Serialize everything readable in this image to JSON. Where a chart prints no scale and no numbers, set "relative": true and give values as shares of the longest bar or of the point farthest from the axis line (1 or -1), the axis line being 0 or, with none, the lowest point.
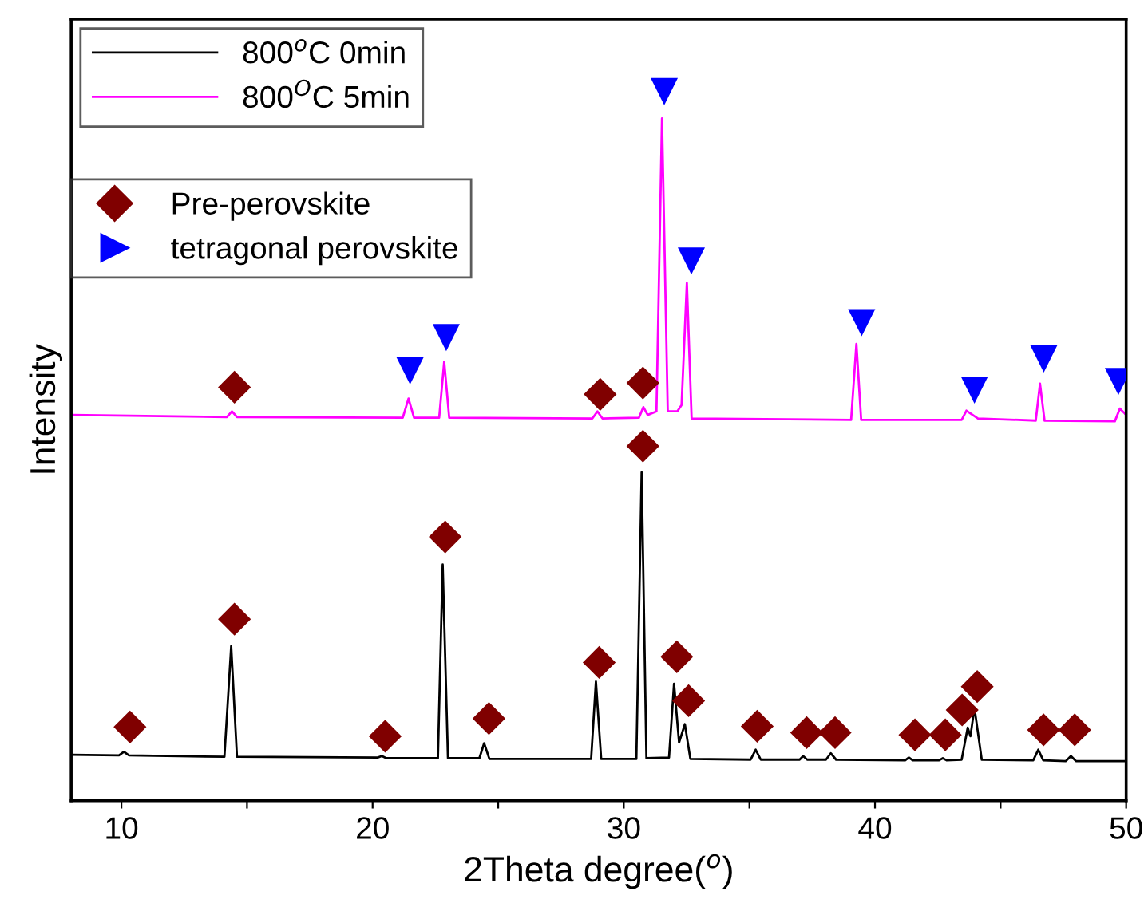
{
  "chart_data": {
    "type": "line",
    "relative": true,
    "xlabel": "2Theta degree($^{o}$)",
    "ylabel": "Intensity",
    "xlim": [
      8,
      50
    ],
    "xticks": [
      10,
      {
        "value": 15,
        "label": null
      },
      20,
      {
        "value": 25,
        "label": null
      },
      30,
      {
        "value": 35,
        "label": null
      },
      40,
      {
        "value": 45,
        "label": null
      },
      50
    ],
    "tick_labels": "x",
    "grid": false,
    "legend": "top left",
    "series": [
      {
        "name": "800$^{o}$C 0min",
        "color": "#000000",
        "x": [
          8.0,
          9.9,
          10.1,
          10.3,
          14.1,
          14.37,
          14.6,
          20.2,
          20.37,
          20.55,
          22.6,
          22.79,
          23.0,
          24.25,
          24.44,
          24.65,
          28.7,
          28.89,
          29.1,
          30.5,
          30.71,
          30.9,
          31.8,
          32.0,
          32.2,
          32.43,
          32.65,
          35.05,
          35.25,
          35.45,
          37.0,
          37.14,
          37.3,
          38.05,
          38.24,
          38.45,
          41.2,
          41.35,
          41.5,
          42.55,
          42.7,
          42.85,
          43.45,
          43.69,
          43.8,
          43.96,
          44.25,
          46.3,
          46.5,
          46.7,
          47.6,
          47.8,
          48.0,
          50.0
        ],
        "values": [
          0.065,
          0.064,
          0.069,
          0.064,
          0.062,
          0.218,
          0.062,
          0.061,
          0.063,
          0.06,
          0.06,
          0.333,
          0.06,
          0.06,
          0.081,
          0.059,
          0.059,
          0.168,
          0.059,
          0.059,
          0.463,
          0.06,
          0.061,
          0.165,
          0.082,
          0.108,
          0.059,
          0.058,
          0.072,
          0.058,
          0.058,
          0.063,
          0.058,
          0.058,
          0.067,
          0.058,
          0.057,
          0.061,
          0.057,
          0.057,
          0.06,
          0.057,
          0.058,
          0.103,
          0.091,
          0.131,
          0.058,
          0.057,
          0.072,
          0.057,
          0.056,
          0.063,
          0.056,
          0.056
        ]
      },
      {
        "name": "800$^{O}$C 5min",
        "color": "#ff00ff",
        "x": [
          8.0,
          14.2,
          14.4,
          14.6,
          21.2,
          21.43,
          21.65,
          22.65,
          22.85,
          23.05,
          28.75,
          28.95,
          29.15,
          30.6,
          30.78,
          30.95,
          31.3,
          31.52,
          31.75,
          32.13,
          32.3,
          32.51,
          32.7,
          39.05,
          39.26,
          39.45,
          43.45,
          43.64,
          44.1,
          46.4,
          46.57,
          46.75,
          49.55,
          49.75,
          50.0
        ],
        "values": [
          0.544,
          0.541,
          0.549,
          0.541,
          0.54,
          0.567,
          0.54,
          0.54,
          0.619,
          0.54,
          0.539,
          0.549,
          0.539,
          0.54,
          0.555,
          0.544,
          0.549,
          0.962,
          0.549,
          0.549,
          0.558,
          0.73,
          0.539,
          0.537,
          0.644,
          0.537,
          0.537,
          0.55,
          0.539,
          0.536,
          0.588,
          0.536,
          0.535,
          0.553,
          0.544
        ]
      },
      {
        "name": "Pre-perovskite",
        "type": "scatter",
        "marker": "diamond",
        "color": "#800000",
        "x": [
          10.34,
          14.5,
          14.5,
          20.5,
          22.89,
          24.63,
          29.06,
          29.02,
          30.76,
          30.76,
          32.11,
          32.58,
          35.31,
          37.28,
          38.41,
          41.59,
          42.8,
          43.47,
          44.07,
          46.71,
          47.95
        ],
        "values": [
          0.104,
          0.583,
          0.256,
          0.091,
          0.372,
          0.116,
          0.573,
          0.195,
          0.589,
          0.5,
          0.203,
          0.141,
          0.105,
          0.096,
          0.096,
          0.093,
          0.093,
          0.128,
          0.161,
          0.1,
          0.1
        ]
      },
      {
        "name": "tetragonal perovskite",
        "type": "scatter",
        "marker": "triangle",
        "color": "#0000ff",
        "x": [
          21.49,
          22.93,
          31.61,
          32.69,
          39.47,
          43.96,
          46.72,
          49.69
        ],
        "values": [
          0.606,
          0.653,
          1.0,
          0.761,
          0.674,
          0.579,
          0.623,
          0.591
        ]
      }
    ]
  }
}
